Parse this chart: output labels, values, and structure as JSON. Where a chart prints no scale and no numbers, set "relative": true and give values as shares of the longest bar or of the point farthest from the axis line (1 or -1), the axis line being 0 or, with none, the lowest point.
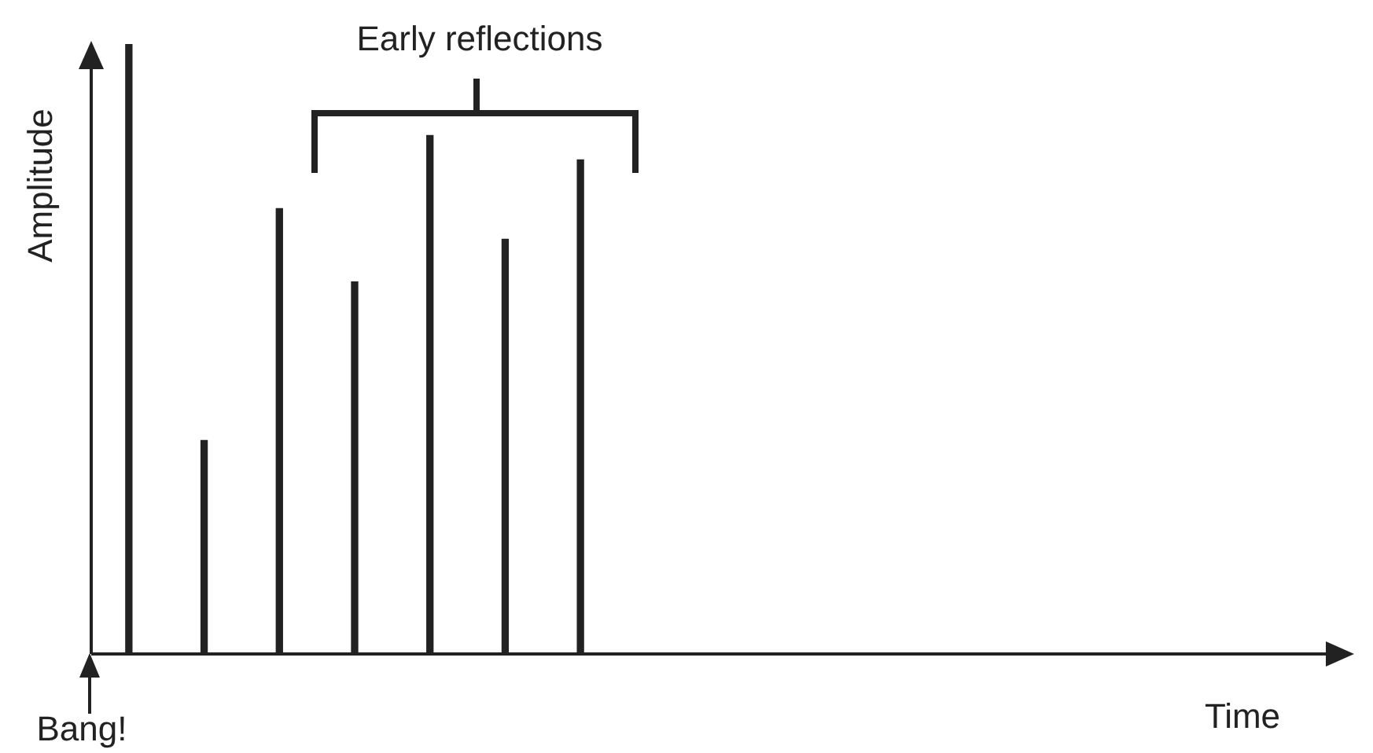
{
  "chart_data": {
    "type": "bar",
    "relative": true,
    "ylabel": "Amplitude",
    "color": "#222222",
    "legend": false,
    "annotations": [
      "Early reflections",
      "Bang!",
      "Time"
    ],
    "categories": [
      null,
      null,
      null,
      null,
      null,
      null,
      null
    ],
    "values": [
      1,
      0.35,
      0.73,
      0.61,
      0.85,
      0.68,
      0.81
    ]
  }
}
